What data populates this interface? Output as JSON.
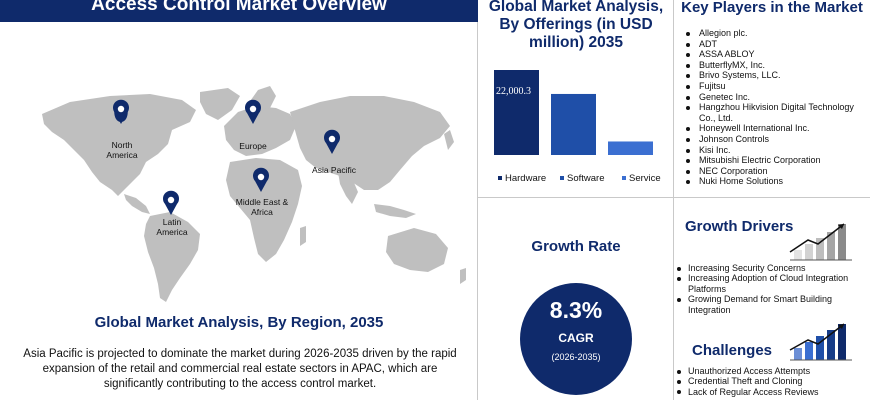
{
  "overview": {
    "title": "Access Control Market Overview",
    "region_heading": "Global Market Analysis, By Region, 2035",
    "region_text": "Asia Pacific is projected to dominate the market during 2026-2035 driven by the rapid expansion of the retail and commercial real estate sectors in APAC, which are significantly contributing to the access control market.",
    "regions": [
      {
        "label": "North America"
      },
      {
        "label": "Europe"
      },
      {
        "label": "Asia Pacific"
      },
      {
        "label": "Middle East & Africa"
      },
      {
        "label": "Latin America"
      }
    ]
  },
  "chart_data": {
    "type": "bar",
    "title": "Global Market Analysis, By Offerings (in USD million) 2035",
    "categories": [
      "Hardware",
      "Software",
      "Service"
    ],
    "values": [
      22000.3,
      15800,
      3500
    ],
    "data_labels": [
      "22,000.3",
      "",
      ""
    ],
    "colors": [
      "#0f2a6b",
      "#1f4fa8",
      "#3b6fd1"
    ],
    "legend_position": "bottom"
  },
  "key_players": {
    "title": "Key Players in the Market",
    "items": [
      "Allegion plc.",
      "ADT",
      "ASSA ABLOY",
      "ButterflyMX, Inc.",
      "Brivo Systems, LLC.",
      "Fujitsu",
      "Genetec Inc.",
      "Hangzhou Hikvision Digital Technology Co., Ltd.",
      "Honeywell International Inc.",
      "Johnson Controls",
      "Kisi Inc.",
      "Mitsubishi Electric Corporation",
      "NEC Corporation",
      "Nuki Home Solutions"
    ]
  },
  "growth": {
    "title": "Growth Rate",
    "value": "8.3%",
    "label": "CAGR",
    "period": "(2026-2035)"
  },
  "drivers": {
    "title": "Growth Drivers",
    "items": [
      "Increasing Security Concerns",
      "Increasing Adoption of Cloud Integration Platforms",
      "Growing Demand for Smart Building Integration"
    ]
  },
  "challenges": {
    "title": "Challenges",
    "items": [
      "Unauthorized Access Attempts",
      "Credential Theft and Cloning",
      "Lack of Regular Access Reviews"
    ]
  },
  "colors": {
    "navy": "#0f2a6b",
    "map_gray": "#bfbfbf"
  }
}
